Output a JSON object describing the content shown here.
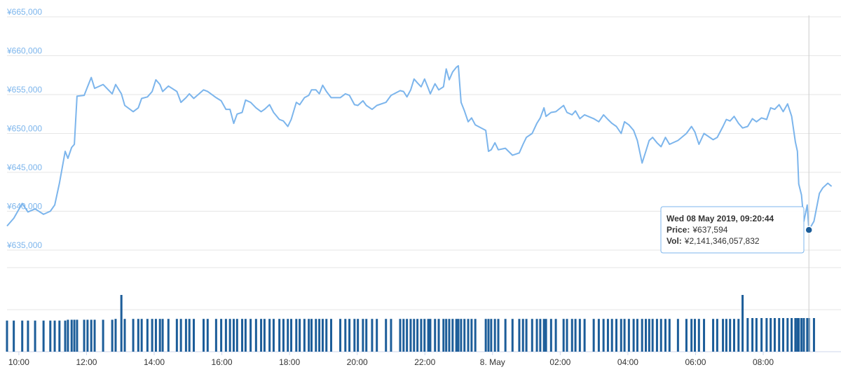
{
  "chart_data": {
    "type": "line",
    "x": [
      -0.35,
      -0.15,
      0.1,
      0.27,
      0.48,
      0.73,
      0.93,
      1.06,
      1.2,
      1.37,
      1.45,
      1.56,
      1.64,
      1.72,
      1.93,
      2.03,
      2.14,
      2.24,
      2.49,
      2.76,
      2.86,
      3.03,
      3.13,
      3.38,
      3.53,
      3.63,
      3.8,
      3.94,
      4.05,
      4.17,
      4.25,
      4.42,
      4.67,
      4.79,
      4.94,
      5.04,
      5.17,
      5.46,
      5.58,
      5.83,
      5.98,
      6.12,
      6.24,
      6.35,
      6.45,
      6.6,
      6.7,
      6.85,
      7.01,
      7.16,
      7.26,
      7.41,
      7.53,
      7.7,
      7.82,
      7.95,
      8.05,
      8.2,
      8.3,
      8.44,
      8.57,
      8.65,
      8.78,
      8.88,
      8.98,
      9.09,
      9.23,
      9.5,
      9.65,
      9.77,
      9.92,
      10.02,
      10.17,
      10.27,
      10.44,
      10.58,
      10.85,
      11.0,
      11.27,
      11.37,
      11.47,
      11.58,
      11.68,
      11.78,
      11.89,
      11.99,
      12.1,
      12.16,
      12.3,
      12.41,
      12.55,
      12.63,
      12.72,
      12.82,
      12.93,
      12.99,
      13.07,
      13.17,
      13.28,
      13.38,
      13.49,
      13.8,
      13.88,
      13.96,
      14.07,
      14.17,
      14.38,
      14.59,
      14.79,
      14.9,
      15.0,
      15.17,
      15.31,
      15.41,
      15.52,
      15.58,
      15.73,
      15.87,
      16.1,
      16.2,
      16.35,
      16.45,
      16.58,
      16.72,
      16.99,
      17.14,
      17.28,
      17.41,
      17.53,
      17.66,
      17.8,
      17.9,
      18.03,
      18.17,
      18.28,
      18.42,
      18.53,
      18.63,
      18.73,
      18.86,
      18.98,
      19.11,
      19.23,
      19.48,
      19.73,
      19.88,
      19.98,
      20.1,
      20.25,
      20.52,
      20.64,
      20.81,
      20.91,
      21.02,
      21.14,
      21.27,
      21.39,
      21.54,
      21.68,
      21.8,
      21.95,
      22.1,
      22.22,
      22.34,
      22.47,
      22.59,
      22.72,
      22.84,
      22.95,
      23.01,
      23.05,
      23.13,
      23.2,
      23.3,
      23.35,
      23.5,
      23.66,
      23.76,
      23.91,
      24.02
    ],
    "series": [
      {
        "color": "#7cb5ec",
        "values": [
          638100,
          639100,
          641000,
          639900,
          640300,
          639600,
          640000,
          640800,
          643600,
          647700,
          646800,
          648200,
          648600,
          654800,
          654900,
          656000,
          657200,
          655800,
          656300,
          655100,
          656300,
          655100,
          653600,
          652800,
          653300,
          654500,
          654700,
          655400,
          656900,
          656300,
          655400,
          656100,
          655400,
          654000,
          654600,
          655100,
          654500,
          655600,
          655400,
          654600,
          654200,
          653100,
          653100,
          651300,
          652500,
          652700,
          654300,
          654000,
          653300,
          652800,
          653100,
          653700,
          652700,
          651800,
          651600,
          650900,
          651800,
          654000,
          653700,
          654600,
          654900,
          655600,
          655600,
          655100,
          656200,
          655400,
          654600,
          654600,
          655100,
          654900,
          653700,
          653600,
          654200,
          653600,
          653100,
          653600,
          654000,
          654900,
          655500,
          655400,
          654700,
          655600,
          657000,
          656500,
          656000,
          657000,
          655800,
          655100,
          656400,
          655600,
          656000,
          658300,
          656900,
          657900,
          658500,
          658700,
          654000,
          652900,
          651500,
          652000,
          651100,
          650400,
          647700,
          647900,
          648800,
          647900,
          648100,
          647200,
          647500,
          648600,
          649500,
          650000,
          651300,
          652000,
          653300,
          652200,
          652700,
          652800,
          653600,
          652700,
          652400,
          652900,
          651900,
          652400,
          651900,
          651500,
          652400,
          651800,
          651300,
          650900,
          650000,
          651500,
          651100,
          650400,
          649100,
          646200,
          647700,
          649100,
          649500,
          648800,
          648300,
          649500,
          648600,
          649100,
          650000,
          650900,
          650200,
          648600,
          650000,
          649200,
          649500,
          650900,
          651800,
          651600,
          652200,
          651300,
          650700,
          650900,
          651900,
          651500,
          652000,
          651800,
          653300,
          653100,
          653700,
          652800,
          653800,
          652200,
          648900,
          647700,
          643500,
          642100,
          638700,
          640800,
          637594,
          638700,
          642300,
          643000,
          643600,
          643200
        ]
      }
    ],
    "volume": {
      "color": "#1c5d99",
      "ylim": [
        0,
        2
      ],
      "values": [
        0.74,
        0.74,
        0.74,
        0.74,
        0.74,
        0.74,
        0.74,
        0.74,
        0.74,
        0.74,
        0.76,
        0.76,
        0.76,
        0.76,
        0.76,
        0.76,
        0.76,
        0.76,
        0.76,
        0.76,
        0.78,
        1.35,
        0.78,
        0.78,
        0.78,
        0.78,
        0.78,
        0.78,
        0.78,
        0.78,
        0.78,
        0.78,
        0.78,
        0.78,
        0.78,
        0.78,
        0.78,
        0.78,
        0.78,
        0.78,
        0.78,
        0.78,
        0.78,
        0.78,
        0.78,
        0.78,
        0.78,
        0.78,
        0.78,
        0.78,
        0.78,
        0.78,
        0.78,
        0.78,
        0.78,
        0.78,
        0.78,
        0.78,
        0.78,
        0.78,
        0.78,
        0.78,
        0.78,
        0.78,
        0.78,
        0.78,
        0.78,
        0.78,
        0.78,
        0.78,
        0.78,
        0.78,
        0.78,
        0.78,
        0.78,
        0.78,
        0.78,
        0.78,
        0.78,
        0.78,
        0.78,
        0.78,
        0.78,
        0.78,
        0.78,
        0.78,
        0.78,
        0.78,
        0.78,
        0.78,
        0.78,
        0.78,
        0.78,
        0.78,
        0.78,
        0.78,
        0.78,
        0.78,
        0.78,
        0.78,
        0.78,
        0.78,
        0.78,
        0.78,
        0.78,
        0.78,
        0.78,
        0.78,
        0.78,
        0.78,
        0.78,
        0.78,
        0.78,
        0.78,
        0.78,
        0.78,
        0.78,
        0.78,
        0.78,
        0.78,
        0.78,
        0.78,
        0.78,
        0.78,
        0.78,
        0.78,
        0.78,
        0.78,
        0.78,
        0.78,
        0.78,
        0.78,
        0.78,
        0.78,
        0.78,
        0.78,
        0.78,
        0.78,
        0.78,
        0.78,
        0.78,
        0.78,
        0.78,
        0.78,
        0.78,
        0.78,
        0.78,
        0.78,
        0.78,
        0.78,
        0.78,
        0.78,
        0.78,
        0.78,
        0.78,
        0.78,
        1.35,
        0.8,
        0.8,
        0.8,
        0.8,
        0.8,
        0.8,
        0.8,
        0.8,
        0.8,
        0.8,
        0.8,
        0.8,
        0.8,
        0.8,
        0.8,
        0.8,
        0.8,
        0.8,
        0.8
      ]
    },
    "xlim": [
      -0.35,
      24.05
    ],
    "xticks": [
      {
        "value": 0,
        "label": "10:00"
      },
      {
        "value": 2,
        "label": "12:00"
      },
      {
        "value": 4,
        "label": "14:00"
      },
      {
        "value": 6,
        "label": "16:00"
      },
      {
        "value": 8,
        "label": "18:00"
      },
      {
        "value": 10,
        "label": "20:00"
      },
      {
        "value": 12,
        "label": "22:00"
      },
      {
        "value": 14,
        "label": "8. May"
      },
      {
        "value": 16,
        "label": "02:00"
      },
      {
        "value": 18,
        "label": "04:00"
      },
      {
        "value": 20,
        "label": "06:00"
      },
      {
        "value": 22,
        "label": "08:00"
      }
    ],
    "ylim": [
      635000,
      665000
    ],
    "yticks": [
      {
        "value": 635000,
        "label": "¥635,000"
      },
      {
        "value": 640000,
        "label": "¥640,000"
      },
      {
        "value": 645000,
        "label": "¥645,000"
      },
      {
        "value": 650000,
        "label": "¥650,000"
      },
      {
        "value": 655000,
        "label": "¥655,000"
      },
      {
        "value": 660000,
        "label": "¥660,000"
      },
      {
        "value": 665000,
        "label": "¥665,000"
      }
    ],
    "grid": true,
    "tooltip": {
      "date": "Wed 08 May 2019, 09:20:44",
      "price_label": "Price:",
      "price": "¥637,594",
      "vol_label": "Vol:",
      "vol": "¥2,141,346,057,832"
    }
  }
}
